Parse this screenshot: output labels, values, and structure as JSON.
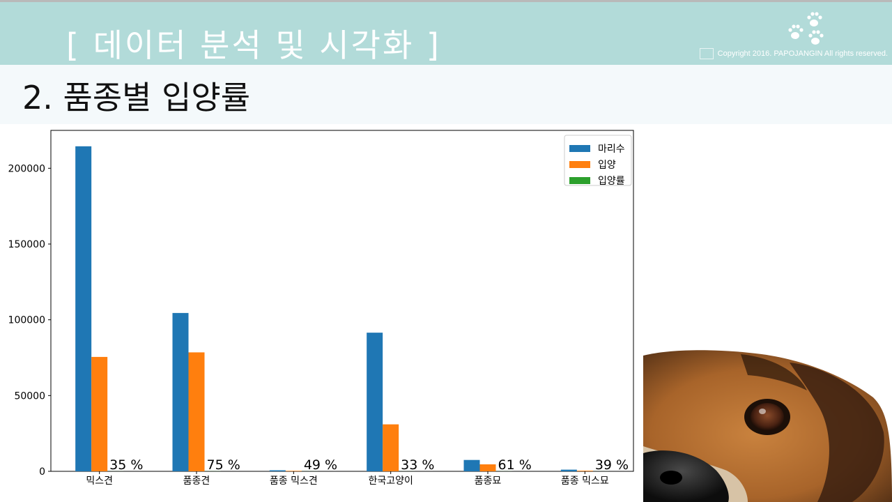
{
  "header": {
    "title": "[ 데이터 분석 및 시각화 ]",
    "copyright": "Copyright 2016. PAPOJANGIN All rights reserved.",
    "logo_icon": "paw-prints-icon"
  },
  "slide": {
    "subtitle": "2. 품종별 입양률"
  },
  "chart_data": {
    "type": "bar",
    "categories": [
      "믹스견",
      "품종견",
      "품종 믹스견",
      "한국고양이",
      "품종묘",
      "품종 믹스묘"
    ],
    "series": [
      {
        "name": "마리수",
        "color": "#1f77b4",
        "values": [
          214500,
          104500,
          700,
          91500,
          7500,
          1100
        ]
      },
      {
        "name": "입양",
        "color": "#ff7f0e",
        "values": [
          75500,
          78500,
          340,
          31000,
          4600,
          430
        ]
      },
      {
        "name": "입양률",
        "color": "#2ca02c",
        "values": [
          35,
          75,
          49,
          33,
          61,
          39
        ]
      }
    ],
    "rate_labels": [
      "35 %",
      "75 %",
      "49 %",
      "33 %",
      "61 %",
      "39 %"
    ],
    "yticks": [
      "0",
      "50000",
      "100000",
      "150000",
      "200000"
    ],
    "ylim": [
      0,
      225000
    ],
    "legend_position": "top-right",
    "grid": false
  }
}
